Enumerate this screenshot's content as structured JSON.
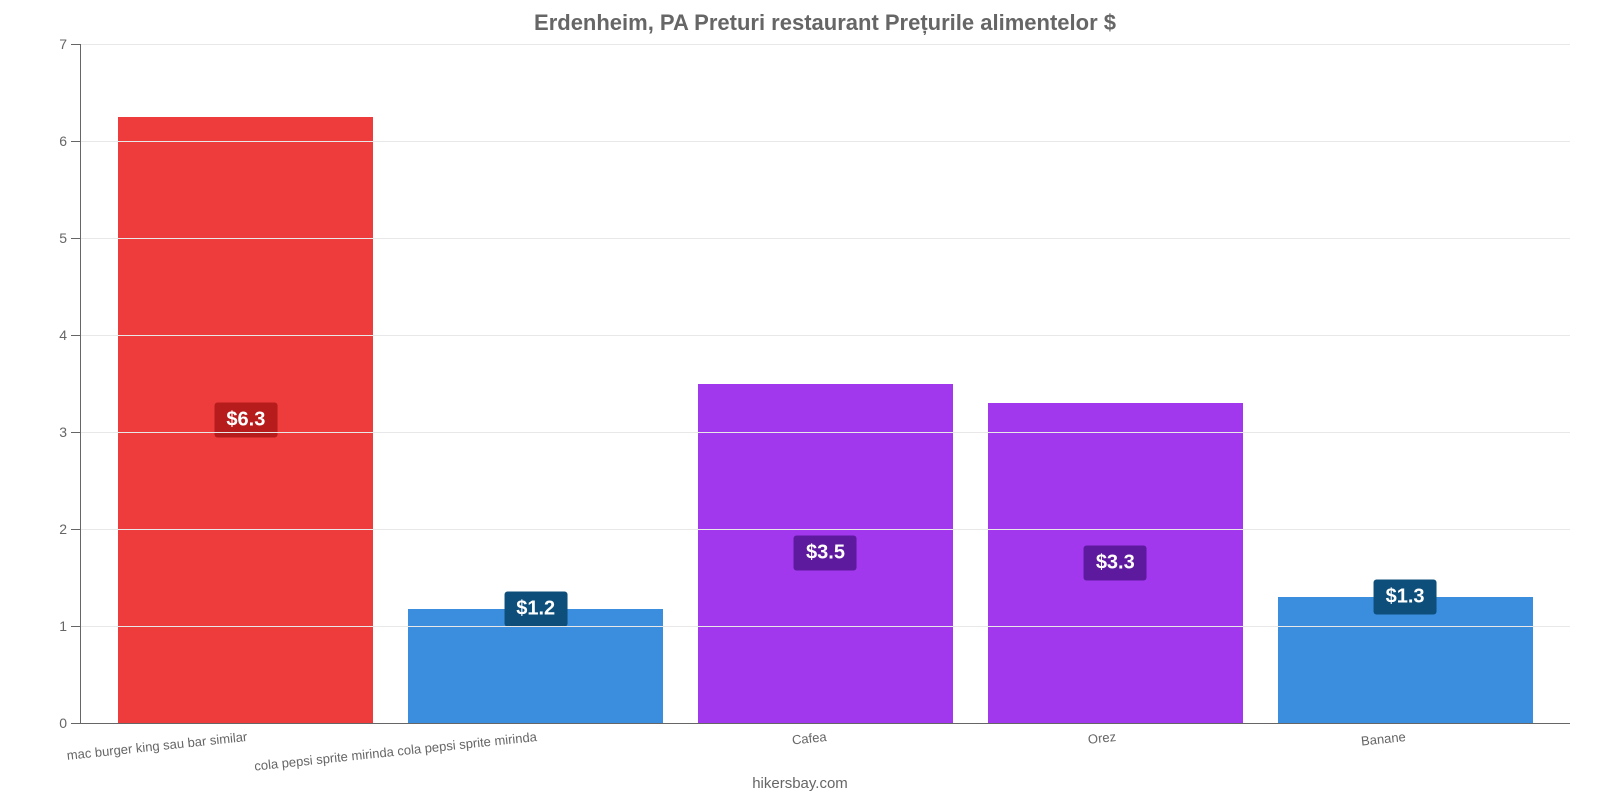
{
  "chart": {
    "type": "bar",
    "title": "Erdenheim, PA Preturi restaurant Prețurile alimentelor $",
    "title_fontsize": 22,
    "title_color": "#666666",
    "background_color": "#ffffff",
    "axis_color": "#666666",
    "grid_color": "#e8e8e8",
    "ylim": [
      0,
      7
    ],
    "ytick_step": 1,
    "yticks": [
      0,
      1,
      2,
      3,
      4,
      5,
      6,
      7
    ],
    "label_fontsize": 14,
    "xlabel_fontsize": 13,
    "xlabel_rotation_deg": -6,
    "bar_width": 0.88,
    "value_badge_fontsize": 20,
    "categories": [
      "mac burger king sau bar similar",
      "cola pepsi sprite mirinda cola pepsi sprite mirinda",
      "Cafea",
      "Orez",
      "Banane"
    ],
    "values": [
      6.25,
      1.18,
      3.5,
      3.3,
      1.3
    ],
    "value_labels": [
      "$6.3",
      "$1.2",
      "$3.5",
      "$3.3",
      "$1.3"
    ],
    "bar_colors": [
      "#ee3b3b",
      "#3b8ede",
      "#a238ee",
      "#a238ee",
      "#3b8ede"
    ],
    "badge_colors": [
      "#b71c1c",
      "#0d4f7a",
      "#5e1a9e",
      "#5e1a9e",
      "#0d4f7a"
    ],
    "badge_offset_mode": [
      "inside",
      "above",
      "inside",
      "inside",
      "above"
    ]
  },
  "attribution": {
    "text": "hikersbay.com",
    "fontsize": 15,
    "color": "#666666"
  }
}
